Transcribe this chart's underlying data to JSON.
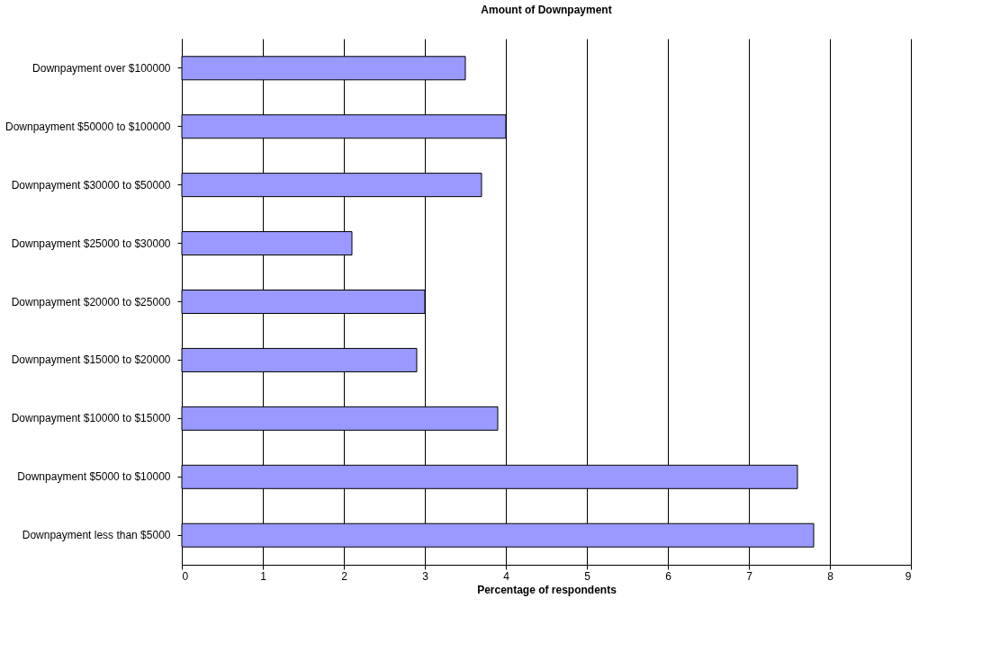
{
  "chart_data": {
    "type": "bar",
    "orientation": "horizontal",
    "title": "Amount of Downpayment",
    "xlabel": "Percentage of respondents",
    "categories": [
      "Downpayment over $100000",
      "Downpayment $50000 to $100000",
      "Downpayment $30000 to $50000",
      "Downpayment $25000 to $30000",
      "Downpayment $20000 to $25000",
      "Downpayment $15000 to $20000",
      "Downpayment $10000 to $15000",
      "Downpayment $5000 to $10000",
      "Downpayment less than $5000"
    ],
    "values": [
      3.5,
      4.0,
      3.7,
      2.1,
      3.0,
      2.9,
      3.9,
      7.6,
      7.8
    ],
    "color": "#9999ff",
    "xlim": [
      0,
      9
    ],
    "xticks": [
      0,
      1,
      2,
      3,
      4,
      5,
      6,
      7,
      8,
      9
    ],
    "grid": "x"
  }
}
